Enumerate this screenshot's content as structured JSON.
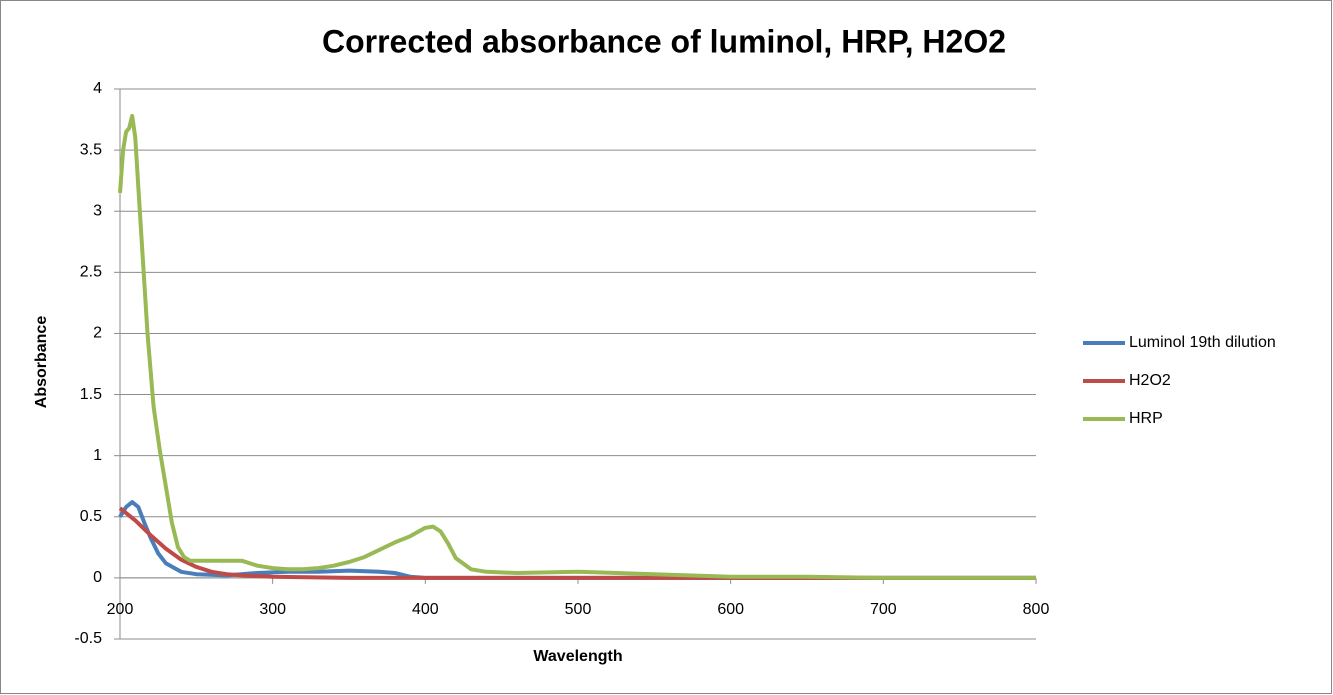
{
  "chart_data": {
    "type": "line",
    "title": "Corrected absorbance of luminol, HRP, H2O2",
    "x_label": "Wavelength",
    "y_label": "Absorbance",
    "xlim": [
      200,
      800
    ],
    "xticks": [
      200,
      300,
      400,
      500,
      600,
      700,
      800
    ],
    "ylim": [
      -0.5,
      4
    ],
    "yticks": [
      -0.5,
      0,
      0.5,
      1,
      1.5,
      2,
      2.5,
      3,
      3.5,
      4
    ],
    "grid": true,
    "legend": "right",
    "series": [
      {
        "name": "Luminol 19th dilution",
        "color": "#4a7ebb",
        "x": [
          200,
          204,
          208,
          212,
          216,
          220,
          225,
          230,
          240,
          250,
          270,
          290,
          310,
          330,
          350,
          370,
          380,
          390,
          400,
          500,
          600,
          800
        ],
        "values": [
          0.5,
          0.58,
          0.62,
          0.58,
          0.45,
          0.33,
          0.2,
          0.12,
          0.05,
          0.03,
          0.02,
          0.04,
          0.05,
          0.05,
          0.06,
          0.05,
          0.04,
          0.01,
          0,
          0,
          0,
          0
        ]
      },
      {
        "name": "H2O2",
        "color": "#be4b48",
        "x": [
          200,
          210,
          220,
          230,
          240,
          250,
          260,
          270,
          280,
          300,
          350,
          400,
          500,
          600,
          800
        ],
        "values": [
          0.57,
          0.47,
          0.35,
          0.24,
          0.15,
          0.09,
          0.05,
          0.03,
          0.02,
          0.01,
          0,
          0,
          0,
          0,
          0
        ]
      },
      {
        "name": "HRP",
        "color": "#98b954",
        "x": [
          200,
          202,
          204,
          206,
          208,
          210,
          212,
          215,
          218,
          222,
          226,
          230,
          234,
          238,
          242,
          246,
          250,
          260,
          270,
          280,
          290,
          300,
          310,
          320,
          330,
          340,
          350,
          360,
          370,
          380,
          390,
          400,
          405,
          410,
          415,
          420,
          430,
          440,
          460,
          500,
          550,
          600,
          650,
          700,
          750,
          800
        ],
        "values": [
          3.15,
          3.5,
          3.65,
          3.68,
          3.78,
          3.6,
          3.2,
          2.6,
          2.0,
          1.4,
          1.05,
          0.75,
          0.45,
          0.25,
          0.17,
          0.14,
          0.14,
          0.14,
          0.14,
          0.14,
          0.1,
          0.08,
          0.07,
          0.07,
          0.08,
          0.1,
          0.13,
          0.17,
          0.23,
          0.29,
          0.34,
          0.41,
          0.42,
          0.38,
          0.28,
          0.16,
          0.07,
          0.05,
          0.04,
          0.05,
          0.03,
          0.01,
          0.01,
          0,
          0,
          0
        ]
      }
    ]
  }
}
